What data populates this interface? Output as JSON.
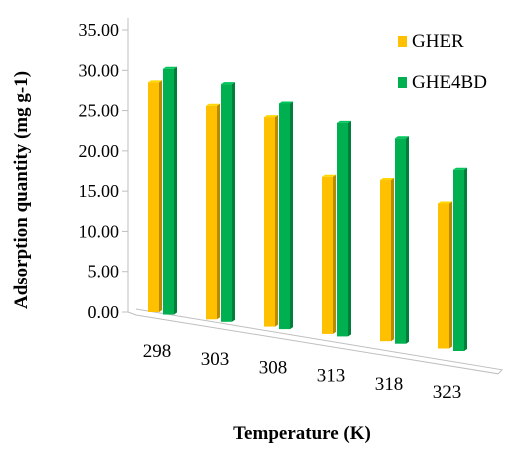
{
  "chart_data": {
    "type": "bar",
    "style": "3d-clustered-column",
    "categories": [
      "298",
      "303",
      "308",
      "313",
      "318",
      "323"
    ],
    "series": [
      {
        "name": "GHER",
        "values": [
          28.5,
          26.5,
          26.0,
          19.5,
          20.0,
          18.0
        ],
        "color": "#FFC000"
      },
      {
        "name": "GHE4BD",
        "values": [
          30.5,
          29.5,
          28.0,
          26.5,
          25.5,
          22.5
        ],
        "color": "#00B050"
      }
    ],
    "xlabel": "Temperature (K)",
    "ylabel": "Adsorption quantity (mg g-1)",
    "ylim": [
      0,
      35
    ],
    "yticks": [
      "0.00",
      "5.00",
      "10.00",
      "15.00",
      "20.00",
      "25.00",
      "30.00",
      "35.00"
    ],
    "legend_position": "top-right",
    "grid": false
  }
}
